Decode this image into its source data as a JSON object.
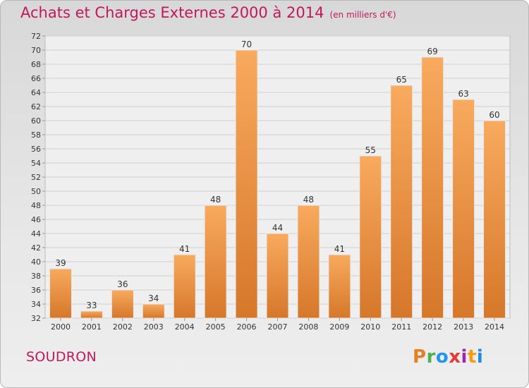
{
  "header": {
    "title": "Achats et Charges Externes 2000 à 2014",
    "subtitle": "(en milliers d'€)"
  },
  "footer": {
    "commune": "SOUDRON",
    "logo_text": "Proxiti",
    "logo_colors": [
      "#e67e22",
      "#4caf50",
      "#2196f3",
      "#e53935",
      "#9c27b0",
      "#f39c12",
      "#1e88e5"
    ]
  },
  "colors": {
    "title": "#c2185b",
    "bar_light": "#f6a55a",
    "bar_dark": "#d97a28"
  },
  "chart_data": {
    "type": "bar",
    "title": "Achats et Charges Externes 2000 à 2014",
    "subtitle": "(en milliers d'€)",
    "categories": [
      "2000",
      "2001",
      "2002",
      "2003",
      "2004",
      "2005",
      "2006",
      "2007",
      "2008",
      "2009",
      "2010",
      "2011",
      "2012",
      "2013",
      "2014"
    ],
    "values": [
      39,
      33,
      36,
      34,
      41,
      48,
      70,
      44,
      48,
      41,
      55,
      65,
      69,
      63,
      60
    ],
    "ylim": [
      32,
      72
    ],
    "yticks": [
      32,
      34,
      36,
      38,
      40,
      42,
      44,
      46,
      48,
      50,
      52,
      54,
      56,
      58,
      60,
      62,
      64,
      66,
      68,
      70,
      72
    ],
    "grid": true,
    "data_labels": true
  }
}
